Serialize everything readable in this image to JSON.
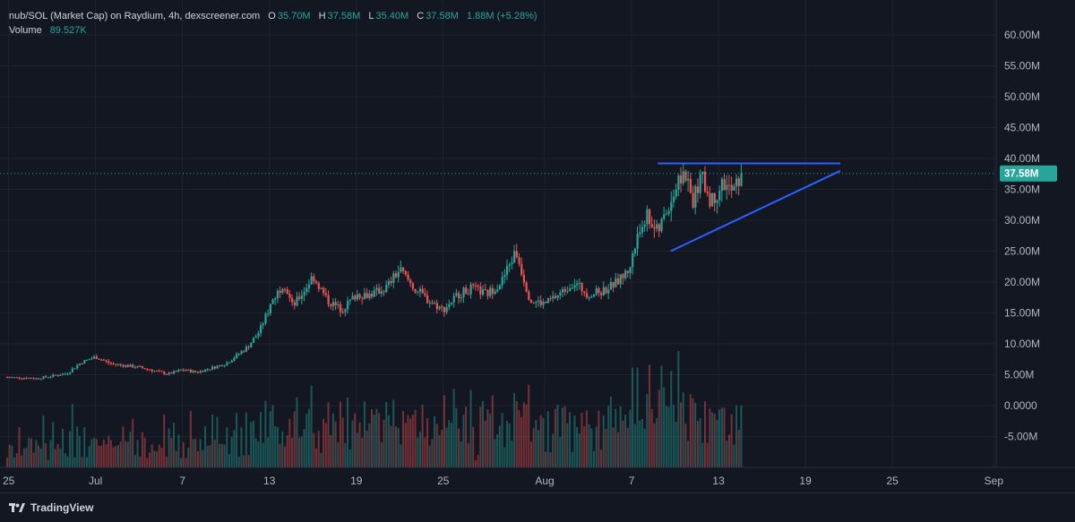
{
  "legend": {
    "title": "nub/SOL (Market Cap) on Raydium, 4h, dexscreener.com",
    "o_label": "O",
    "o_value": "35.70M",
    "h_label": "H",
    "h_value": "37.58M",
    "l_label": "L",
    "l_value": "35.40M",
    "c_label": "C",
    "c_value": "37.58M",
    "change": "1.88M (+5.28%)",
    "volume_label": "Volume",
    "volume_value": "89.527K"
  },
  "price_badge": "37.58M",
  "footer": {
    "brand": "TradingView"
  },
  "colors": {
    "background": "#131722",
    "grid": "#1f2330",
    "up": "#26a69a",
    "down": "#ef5350",
    "trendline": "#2962ff",
    "axis_text": "#b2b5be",
    "badge": "#26a69a"
  },
  "chart_data": {
    "type": "candlestick",
    "timeframe": "4h",
    "ylim": [
      -9.5,
      63
    ],
    "y_unit": "M",
    "y_ticks": [
      "60.00M",
      "55.00M",
      "50.00M",
      "45.00M",
      "40.00M",
      "35.00M",
      "30.00M",
      "25.00M",
      "20.00M",
      "15.00M",
      "10.00M",
      "5.00M",
      "0.0000",
      "-5.00M"
    ],
    "y_tick_values": [
      60,
      55,
      50,
      45,
      40,
      35,
      30,
      25,
      20,
      15,
      10,
      5,
      0,
      -5
    ],
    "x_ticks": [
      "25",
      "Jul",
      "7",
      "13",
      "19",
      "25",
      "Aug",
      "7",
      "13",
      "19",
      "25",
      "Sep"
    ],
    "x_tick_days": [
      25,
      31,
      37,
      43,
      49,
      55,
      62,
      68,
      74,
      80,
      86,
      93
    ],
    "x_day_range": [
      24.9,
      94.4
    ],
    "last_price": 37.58,
    "series_keypoints": [
      {
        "day": 24.9,
        "mc": 4.6
      },
      {
        "day": 27,
        "mc": 4.4
      },
      {
        "day": 29,
        "mc": 5.2
      },
      {
        "day": 30,
        "mc": 7.0
      },
      {
        "day": 31,
        "mc": 7.9
      },
      {
        "day": 32,
        "mc": 6.8
      },
      {
        "day": 34,
        "mc": 6.2
      },
      {
        "day": 36,
        "mc": 5.1
      },
      {
        "day": 37,
        "mc": 5.8
      },
      {
        "day": 38,
        "mc": 5.4
      },
      {
        "day": 40,
        "mc": 6.8
      },
      {
        "day": 41.5,
        "mc": 9.5
      },
      {
        "day": 42.3,
        "mc": 12
      },
      {
        "day": 43.2,
        "mc": 17
      },
      {
        "day": 44,
        "mc": 20
      },
      {
        "day": 44.6,
        "mc": 16
      },
      {
        "day": 45.5,
        "mc": 19
      },
      {
        "day": 46,
        "mc": 21
      },
      {
        "day": 47,
        "mc": 17
      },
      {
        "day": 48,
        "mc": 15.5
      },
      {
        "day": 49,
        "mc": 18
      },
      {
        "day": 50,
        "mc": 18
      },
      {
        "day": 51,
        "mc": 19
      },
      {
        "day": 52,
        "mc": 22
      },
      {
        "day": 53,
        "mc": 19
      },
      {
        "day": 54,
        "mc": 17
      },
      {
        "day": 55,
        "mc": 15.5
      },
      {
        "day": 56,
        "mc": 18
      },
      {
        "day": 57,
        "mc": 19
      },
      {
        "day": 58,
        "mc": 18
      },
      {
        "day": 59,
        "mc": 20
      },
      {
        "day": 60,
        "mc": 25
      },
      {
        "day": 61,
        "mc": 17
      },
      {
        "day": 62,
        "mc": 16.5
      },
      {
        "day": 63,
        "mc": 18
      },
      {
        "day": 64,
        "mc": 20
      },
      {
        "day": 65,
        "mc": 18
      },
      {
        "day": 66,
        "mc": 18.5
      },
      {
        "day": 67,
        "mc": 20
      },
      {
        "day": 67.8,
        "mc": 22
      },
      {
        "day": 68.5,
        "mc": 28
      },
      {
        "day": 69,
        "mc": 31
      },
      {
        "day": 69.8,
        "mc": 28
      },
      {
        "day": 70.5,
        "mc": 32
      },
      {
        "day": 71,
        "mc": 35
      },
      {
        "day": 71.6,
        "mc": 38
      },
      {
        "day": 72.2,
        "mc": 33
      },
      {
        "day": 72.8,
        "mc": 37
      },
      {
        "day": 73.5,
        "mc": 33
      },
      {
        "day": 74.3,
        "mc": 36
      },
      {
        "day": 75,
        "mc": 34.5
      },
      {
        "day": 75.6,
        "mc": 37.6
      }
    ],
    "trendlines": [
      {
        "name": "resistance",
        "points": [
          {
            "day": 69.8,
            "mc": 39.2
          },
          {
            "day": 82.4,
            "mc": 39.2
          }
        ]
      },
      {
        "name": "support",
        "points": [
          {
            "day": 70.7,
            "mc": 25.0
          },
          {
            "day": 82.4,
            "mc": 38.0
          }
        ]
      }
    ]
  }
}
